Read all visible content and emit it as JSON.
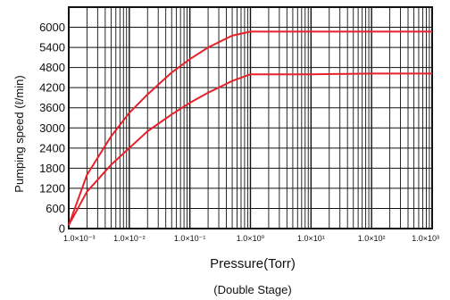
{
  "chart_data": {
    "type": "line",
    "xscale": "log",
    "xlim": [
      0.001,
      1000
    ],
    "ylim": [
      0,
      6600
    ],
    "grid": true,
    "legend": "none",
    "colors": {
      "series": "#e8202a",
      "grid": "#111111"
    },
    "xlabel": "Pressure(Torr)",
    "subtitle": "(Double Stage)",
    "ylabel": "Pumping speed (ℓ/min)",
    "x_ticks": [
      {
        "value": 0.001,
        "label": "1.0×10⁻³"
      },
      {
        "value": 0.01,
        "label": "1.0×10⁻²"
      },
      {
        "value": 0.1,
        "label": "1.0×10⁻¹"
      },
      {
        "value": 1,
        "label": "1.0×10⁰"
      },
      {
        "value": 10,
        "label": "1.0×10¹"
      },
      {
        "value": 100,
        "label": "1.0×10²"
      },
      {
        "value": 1000,
        "label": "1.0×10³"
      }
    ],
    "y_ticks": [
      0,
      600,
      1200,
      1800,
      2400,
      3000,
      3600,
      4200,
      4800,
      5400,
      6000
    ],
    "series": [
      {
        "x": [
          0.001,
          0.002,
          0.005,
          0.01,
          0.02,
          0.05,
          0.1,
          0.2,
          0.5,
          1,
          10,
          100,
          1000
        ],
        "values": [
          100,
          1600,
          2750,
          3450,
          4000,
          4650,
          5050,
          5400,
          5750,
          5870,
          5870,
          5870,
          5870
        ]
      },
      {
        "x": [
          0.001,
          0.002,
          0.005,
          0.01,
          0.02,
          0.05,
          0.1,
          0.2,
          0.5,
          1,
          10,
          100,
          1000
        ],
        "values": [
          100,
          1100,
          1900,
          2400,
          2900,
          3400,
          3750,
          4050,
          4400,
          4600,
          4600,
          4620,
          4620
        ]
      }
    ]
  }
}
